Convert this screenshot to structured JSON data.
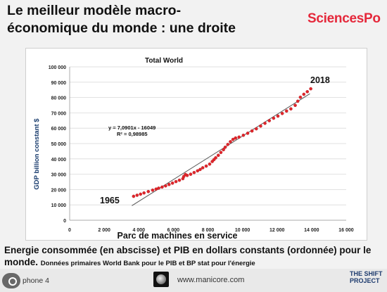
{
  "slide": {
    "title_line1": "Le meilleur modèle macro-",
    "title_line2": "économique du monde : une droite",
    "brand": "SciencesPo",
    "brand_color": "#e5283b",
    "caption_main": "Energie consommée (en abscisse) et PIB en dollars constants (ordonnée) pour le monde.",
    "caption_small": "Données primaires World Bank pour le PIB et BP stat pour l'énergie",
    "footer_text": "phone 4",
    "footer_url": "www.manicore.com",
    "shift_line1": "THE SHIFT",
    "shift_line2": "PROJECT"
  },
  "chart_data": {
    "type": "scatter",
    "title": "Total World",
    "xlabel": "Parc de machines en service",
    "ylabel": "GDP billion constant $",
    "xlim": [
      0,
      16000
    ],
    "ylim": [
      0,
      100000
    ],
    "xticks": [
      "0",
      "2 000",
      "4 000",
      "6 000",
      "8 000",
      "10 000",
      "12 000",
      "14 000",
      "16 000"
    ],
    "yticks": [
      "0",
      "10 000",
      "20 000",
      "30 000",
      "40 000",
      "50 000",
      "60 000",
      "70 000",
      "80 000",
      "90 000",
      "100 000"
    ],
    "marker_color": "#e0262b",
    "trend_color": "#555555",
    "series": [
      {
        "points": [
          [
            3700,
            15600
          ],
          [
            3900,
            16300
          ],
          [
            4100,
            17000
          ],
          [
            4300,
            17800
          ],
          [
            4550,
            18700
          ],
          [
            4800,
            19600
          ],
          [
            5000,
            20300
          ],
          [
            5150,
            20900
          ],
          [
            5350,
            21600
          ],
          [
            5550,
            22400
          ],
          [
            5750,
            23300
          ],
          [
            5950,
            24200
          ],
          [
            6150,
            25200
          ],
          [
            6350,
            26100
          ],
          [
            6550,
            27100
          ],
          [
            6700,
            29800
          ],
          [
            6600,
            28500
          ],
          [
            6800,
            29200
          ],
          [
            7000,
            30000
          ],
          [
            7200,
            31100
          ],
          [
            7400,
            32200
          ],
          [
            7550,
            33100
          ],
          [
            7700,
            34200
          ],
          [
            7900,
            35300
          ],
          [
            8100,
            36600
          ],
          [
            8250,
            38300
          ],
          [
            8350,
            39500
          ],
          [
            8450,
            40700
          ],
          [
            8600,
            42300
          ],
          [
            8750,
            44200
          ],
          [
            8900,
            46000
          ],
          [
            9000,
            47600
          ],
          [
            9150,
            49400
          ],
          [
            9300,
            51200
          ],
          [
            9450,
            52700
          ],
          [
            9600,
            53600
          ],
          [
            9800,
            54200
          ],
          [
            10050,
            55400
          ],
          [
            10300,
            56700
          ],
          [
            10550,
            58200
          ],
          [
            10800,
            59600
          ],
          [
            11050,
            61400
          ],
          [
            11300,
            63200
          ],
          [
            11550,
            64900
          ],
          [
            11800,
            66500
          ],
          [
            12050,
            67900
          ],
          [
            12300,
            69600
          ],
          [
            12550,
            71200
          ],
          [
            12800,
            72600
          ],
          [
            13050,
            74900
          ],
          [
            13200,
            77600
          ],
          [
            13350,
            80200
          ],
          [
            13550,
            82100
          ],
          [
            13750,
            83800
          ],
          [
            13950,
            85700
          ]
        ]
      }
    ],
    "trendline": {
      "slope": 7.0901,
      "intercept": -16049,
      "x_range": [
        3600,
        13900
      ]
    },
    "annotations": {
      "equation": "y = 7,0901x - 16049",
      "r2": "R² = 0,98985",
      "label_start": "1965",
      "label_end": "2018"
    }
  }
}
